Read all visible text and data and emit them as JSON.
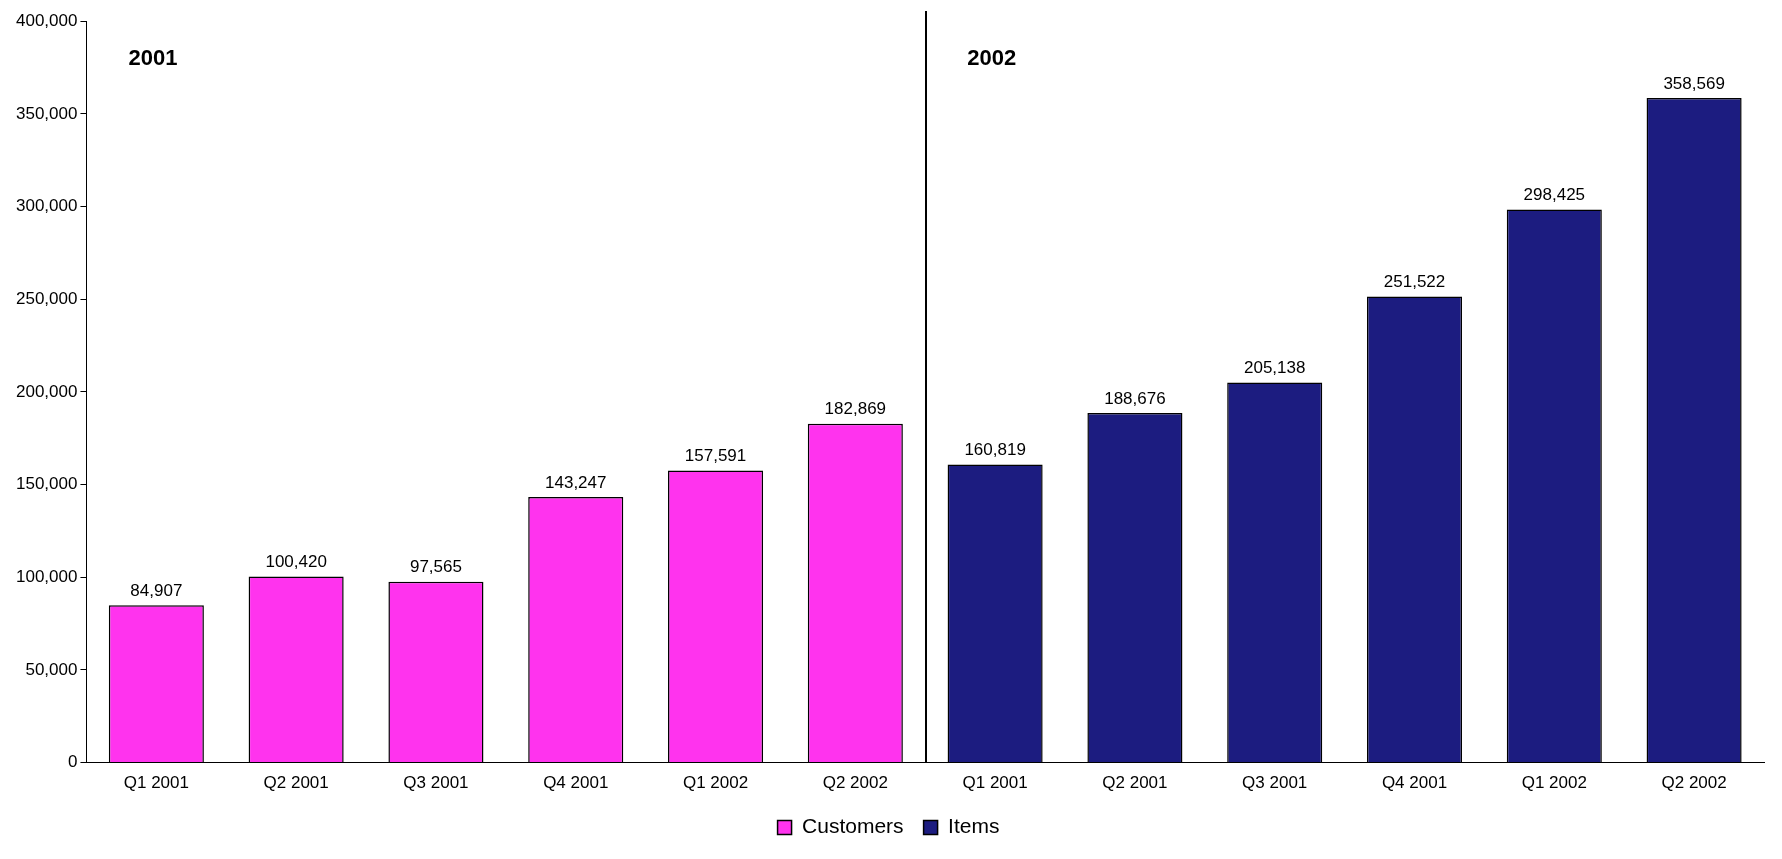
{
  "chart_data": {
    "type": "bar",
    "categories": [
      "Q1 2001",
      "Q2 2001",
      "Q3 2001",
      "Q4 2001",
      "Q1 2002",
      "Q2 2002",
      "Q1 2001",
      "Q2 2001",
      "Q3 2001",
      "Q4 2001",
      "Q1 2002",
      "Q2 2002"
    ],
    "series": [
      {
        "name": "Customers",
        "color": "#ff33ee",
        "values": [
          84907,
          100420,
          97565,
          143247,
          157591,
          182869,
          null,
          null,
          null,
          null,
          null,
          null
        ],
        "value_labels": [
          "84,907",
          "100,420",
          "97,565",
          "143,247",
          "157,591",
          "182,869",
          null,
          null,
          null,
          null,
          null,
          null
        ]
      },
      {
        "name": "Items",
        "color": "#1c1c80",
        "values": [
          null,
          null,
          null,
          null,
          null,
          null,
          160819,
          188676,
          205138,
          251522,
          298425,
          358569
        ],
        "value_labels": [
          null,
          null,
          null,
          null,
          null,
          null,
          "160,819",
          "188,676",
          "205,138",
          "251,522",
          "298,425",
          "358,569"
        ]
      }
    ],
    "annotations": [
      "2001",
      "2002"
    ],
    "ylim": [
      0,
      400000
    ],
    "yticks": [
      0,
      {
        "value": 50000,
        "label": "50,000"
      },
      {
        "value": 100000,
        "label": "100,000"
      },
      {
        "value": 150000,
        "label": "150,000"
      },
      {
        "value": 200000,
        "label": "200,000"
      },
      {
        "value": 250000,
        "label": "250,000"
      },
      {
        "value": 300000,
        "label": "300,000"
      },
      {
        "value": 350000,
        "label": "350,000"
      },
      {
        "value": 400000,
        "label": "400,000"
      }
    ],
    "grid": false,
    "legend": "bottom"
  }
}
